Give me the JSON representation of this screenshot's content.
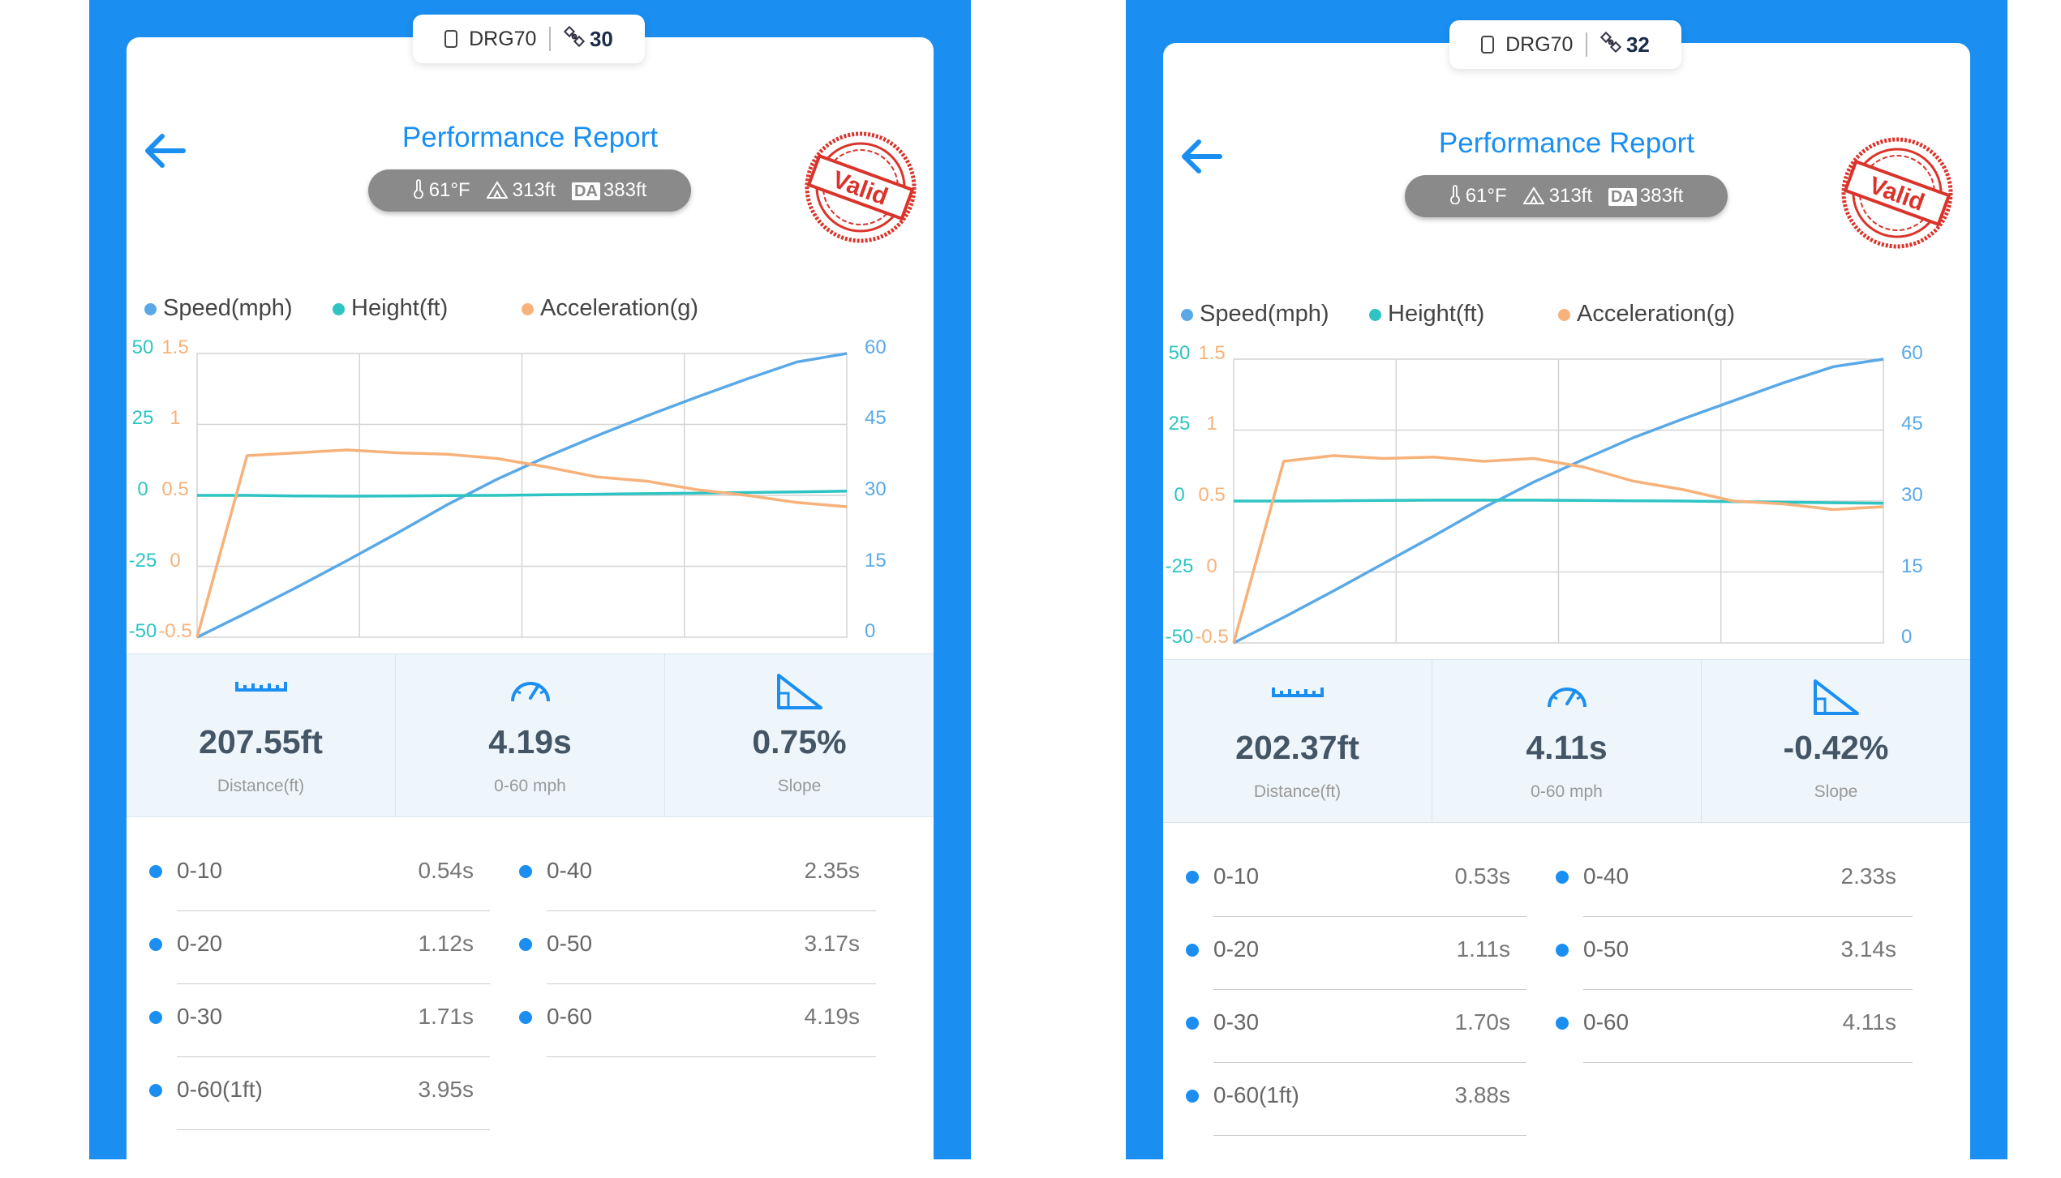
{
  "panels": [
    {
      "device": {
        "name": "DRG70",
        "satellites": "30"
      },
      "title": "Performance Report",
      "conditions": {
        "temp": "61°F",
        "altitude": "313ft",
        "da_label": "DA",
        "density_altitude": "383ft"
      },
      "stamp_text": "Valid",
      "legend": [
        "Speed(mph)",
        "Height(ft)",
        "Acceleration(g)"
      ],
      "stats": [
        {
          "value": "207.55ft",
          "label": "Distance(ft)",
          "icon": "ruler-icon"
        },
        {
          "value": "4.19s",
          "label": "0-60 mph",
          "icon": "speedometer-icon"
        },
        {
          "value": "0.75%",
          "label": "Slope",
          "icon": "slope-icon"
        }
      ],
      "splits": [
        {
          "name": "0-10",
          "time": "0.54s"
        },
        {
          "name": "0-40",
          "time": "2.35s"
        },
        {
          "name": "0-20",
          "time": "1.12s"
        },
        {
          "name": "0-50",
          "time": "3.17s"
        },
        {
          "name": "0-30",
          "time": "1.71s"
        },
        {
          "name": "0-60",
          "time": "4.19s"
        },
        {
          "name": "0-60(1ft)",
          "time": "3.95s"
        }
      ]
    },
    {
      "device": {
        "name": "DRG70",
        "satellites": "32"
      },
      "title": "Performance Report",
      "conditions": {
        "temp": "61°F",
        "altitude": "313ft",
        "da_label": "DA",
        "density_altitude": "383ft"
      },
      "stamp_text": "Valid",
      "legend": [
        "Speed(mph)",
        "Height(ft)",
        "Acceleration(g)"
      ],
      "stats": [
        {
          "value": "202.37ft",
          "label": "Distance(ft)",
          "icon": "ruler-icon"
        },
        {
          "value": "4.11s",
          "label": "0-60 mph",
          "icon": "speedometer-icon"
        },
        {
          "value": "-0.42%",
          "label": "Slope",
          "icon": "slope-icon"
        }
      ],
      "splits": [
        {
          "name": "0-10",
          "time": "0.53s"
        },
        {
          "name": "0-40",
          "time": "2.33s"
        },
        {
          "name": "0-20",
          "time": "1.11s"
        },
        {
          "name": "0-50",
          "time": "3.14s"
        },
        {
          "name": "0-30",
          "time": "1.70s"
        },
        {
          "name": "0-60",
          "time": "4.11s"
        },
        {
          "name": "0-60(1ft)",
          "time": "3.88s"
        }
      ]
    }
  ],
  "colors": {
    "accent": "#1a8ff1",
    "speed": "#5aa9e6",
    "height": "#2ec4c4",
    "accel": "#f6b27a",
    "stamp": "#d9342b"
  },
  "chart_data": [
    {
      "type": "line",
      "axes": {
        "height_ticks": [
          "50",
          "25",
          "0",
          "-25",
          "-50"
        ],
        "accel_ticks": [
          "1.5",
          "1",
          "0.5",
          "0",
          "-0.5"
        ],
        "speed_ticks": [
          "60",
          "45",
          "30",
          "15",
          "0"
        ],
        "height_range": [
          -50,
          50
        ],
        "accel_range": [
          -0.5,
          1.5
        ],
        "speed_range": [
          0,
          60
        ]
      },
      "series": [
        {
          "name": "Speed(mph)",
          "axis": "speed",
          "values": [
            0,
            5.2,
            10.6,
            16.2,
            22,
            28,
            33.4,
            38.2,
            42.6,
            46.8,
            50.8,
            54.6,
            58.2,
            60
          ]
        },
        {
          "name": "Height(ft)",
          "axis": "height",
          "values": [
            0,
            0,
            -0.2,
            -0.3,
            -0.2,
            -0.1,
            0,
            0.2,
            0.4,
            0.6,
            0.8,
            1.0,
            1.2,
            1.5
          ]
        },
        {
          "name": "Acceleration(g)",
          "axis": "accel",
          "values": [
            -0.5,
            0.78,
            0.8,
            0.82,
            0.8,
            0.79,
            0.76,
            0.7,
            0.63,
            0.6,
            0.54,
            0.5,
            0.45,
            0.42
          ]
        }
      ]
    },
    {
      "type": "line",
      "axes": {
        "height_ticks": [
          "50",
          "25",
          "0",
          "-25",
          "-50"
        ],
        "accel_ticks": [
          "1.5",
          "1",
          "0.5",
          "0",
          "-0.5"
        ],
        "speed_ticks": [
          "60",
          "45",
          "30",
          "15",
          "0"
        ],
        "height_range": [
          -50,
          50
        ],
        "accel_range": [
          -0.5,
          1.5
        ],
        "speed_range": [
          0,
          60
        ]
      },
      "series": [
        {
          "name": "Speed(mph)",
          "axis": "speed",
          "values": [
            0,
            5.4,
            11,
            16.8,
            22.6,
            28.6,
            34,
            38.8,
            43.4,
            47.4,
            51.2,
            55,
            58.4,
            60
          ]
        },
        {
          "name": "Height(ft)",
          "axis": "height",
          "values": [
            0,
            0,
            0.1,
            0.2,
            0.3,
            0.3,
            0.3,
            0.2,
            0.1,
            0,
            -0.2,
            -0.4,
            -0.6,
            -0.8
          ]
        },
        {
          "name": "Acceleration(g)",
          "axis": "accel",
          "values": [
            -0.5,
            0.78,
            0.82,
            0.8,
            0.81,
            0.78,
            0.8,
            0.74,
            0.64,
            0.58,
            0.5,
            0.48,
            0.44,
            0.46
          ]
        }
      ]
    }
  ]
}
